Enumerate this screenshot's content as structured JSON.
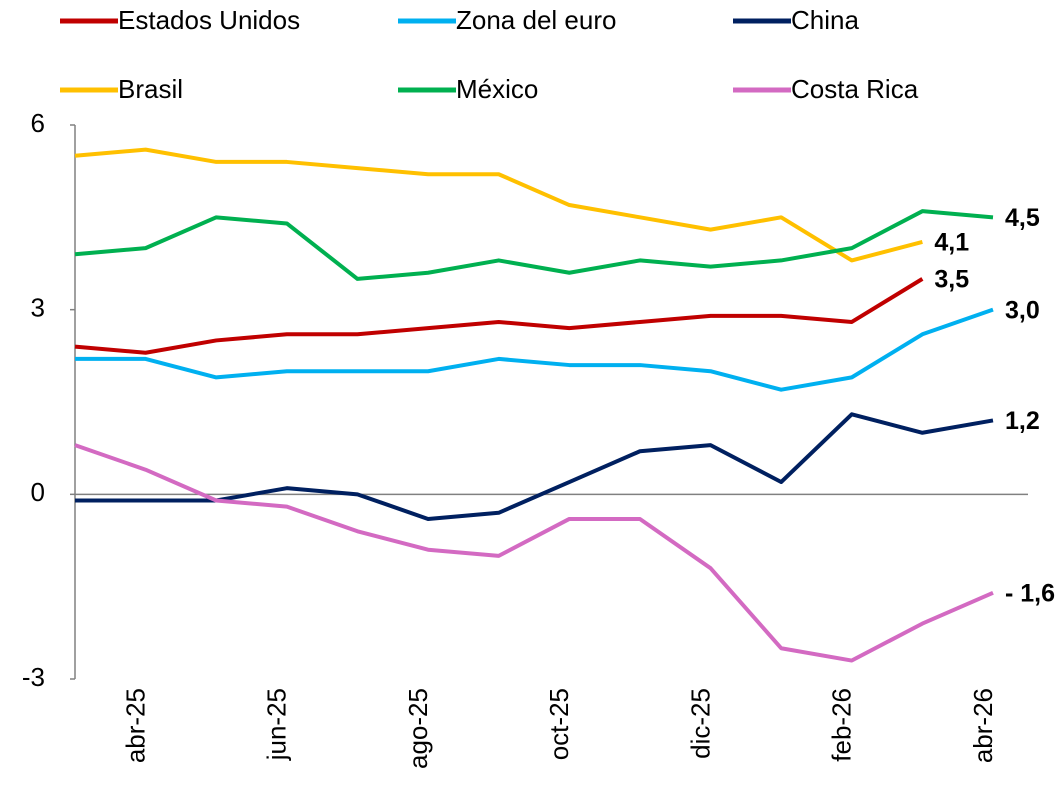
{
  "chart_data": {
    "type": "line",
    "categories": [
      null,
      "abr-25",
      null,
      "jun-25",
      null,
      "ago-25",
      null,
      "oct-25",
      null,
      "dic-25",
      null,
      "feb-26",
      null,
      "abr-26"
    ],
    "ylim": [
      -3,
      6
    ],
    "yticks": [
      -3,
      0,
      3,
      6
    ],
    "series": [
      {
        "name": "Estados Unidos",
        "color": "#c00000",
        "values": [
          2.4,
          2.3,
          2.5,
          2.6,
          2.6,
          2.7,
          2.8,
          2.7,
          2.8,
          2.9,
          2.9,
          2.8,
          3.5,
          null
        ],
        "value_labels": [
          null,
          null,
          null,
          null,
          null,
          null,
          null,
          null,
          null,
          null,
          null,
          null,
          "3,5",
          null
        ]
      },
      {
        "name": "Zona del euro",
        "color": "#00b0f0",
        "values": [
          2.2,
          2.2,
          1.9,
          2.0,
          2.0,
          2.0,
          2.2,
          2.1,
          2.1,
          2.0,
          1.7,
          1.9,
          2.6,
          3.0
        ],
        "value_labels": [
          null,
          null,
          null,
          null,
          null,
          null,
          null,
          null,
          null,
          null,
          null,
          null,
          null,
          "3,0"
        ]
      },
      {
        "name": "China",
        "color": "#002060",
        "values": [
          -0.1,
          -0.1,
          -0.1,
          0.1,
          0.0,
          -0.4,
          -0.3,
          0.2,
          0.7,
          0.8,
          0.2,
          1.3,
          1.0,
          1.2
        ],
        "value_labels": [
          null,
          null,
          null,
          null,
          null,
          null,
          null,
          null,
          null,
          null,
          null,
          null,
          null,
          "1,2"
        ]
      },
      {
        "name": "Brasil",
        "color": "#ffc000",
        "values": [
          5.5,
          5.6,
          5.4,
          5.4,
          5.3,
          5.2,
          5.2,
          4.7,
          4.5,
          4.3,
          4.5,
          3.8,
          4.1,
          null
        ],
        "value_labels": [
          null,
          null,
          null,
          null,
          null,
          null,
          null,
          null,
          null,
          null,
          null,
          null,
          "4,1",
          null
        ]
      },
      {
        "name": "México",
        "color": "#00b050",
        "values": [
          3.9,
          4.0,
          4.5,
          4.4,
          3.5,
          3.6,
          3.8,
          3.6,
          3.8,
          3.7,
          3.8,
          4.0,
          4.6,
          4.5
        ],
        "value_labels": [
          null,
          null,
          null,
          null,
          null,
          null,
          null,
          null,
          null,
          null,
          null,
          null,
          null,
          "4,5"
        ]
      },
      {
        "name": "Costa Rica",
        "color": "#d36ac2",
        "values": [
          0.8,
          0.4,
          -0.1,
          -0.2,
          -0.6,
          -0.9,
          -1.0,
          -0.4,
          -0.4,
          -1.2,
          -2.5,
          -2.7,
          -2.1,
          -1.6
        ],
        "value_labels": [
          null,
          null,
          null,
          null,
          null,
          null,
          null,
          null,
          null,
          null,
          null,
          null,
          null,
          "- 1,6"
        ]
      }
    ]
  }
}
